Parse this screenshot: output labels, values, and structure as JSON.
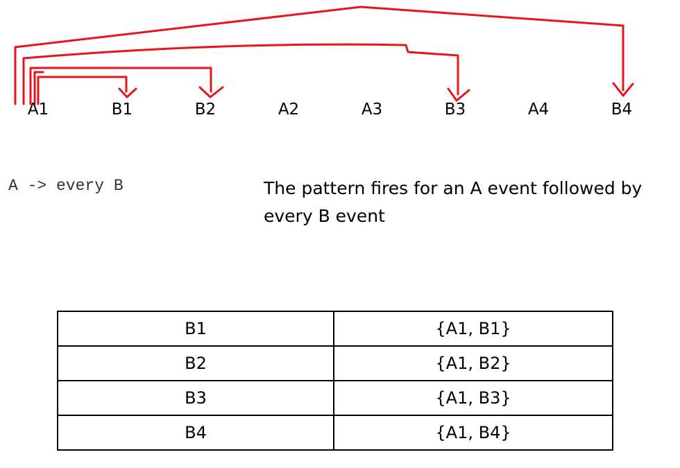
{
  "events": [
    {
      "id": "A1"
    },
    {
      "id": "B1"
    },
    {
      "id": "B2"
    },
    {
      "id": "A2"
    },
    {
      "id": "A3"
    },
    {
      "id": "B3"
    },
    {
      "id": "A4"
    },
    {
      "id": "B4"
    }
  ],
  "pattern": {
    "expression": "A -> every B",
    "description": "The pattern fires for an A event followed by every B event"
  },
  "results": {
    "rows": [
      {
        "event": "B1",
        "match": "{A1, B1}"
      },
      {
        "event": "B2",
        "match": "{A1, B2}"
      },
      {
        "event": "B3",
        "match": "{A1, B3}"
      },
      {
        "event": "B4",
        "match": "{A1, B4}"
      }
    ]
  },
  "colors": {
    "arrow": "#e8141b",
    "text": "#000000",
    "code": "#333333",
    "border": "#000000"
  }
}
